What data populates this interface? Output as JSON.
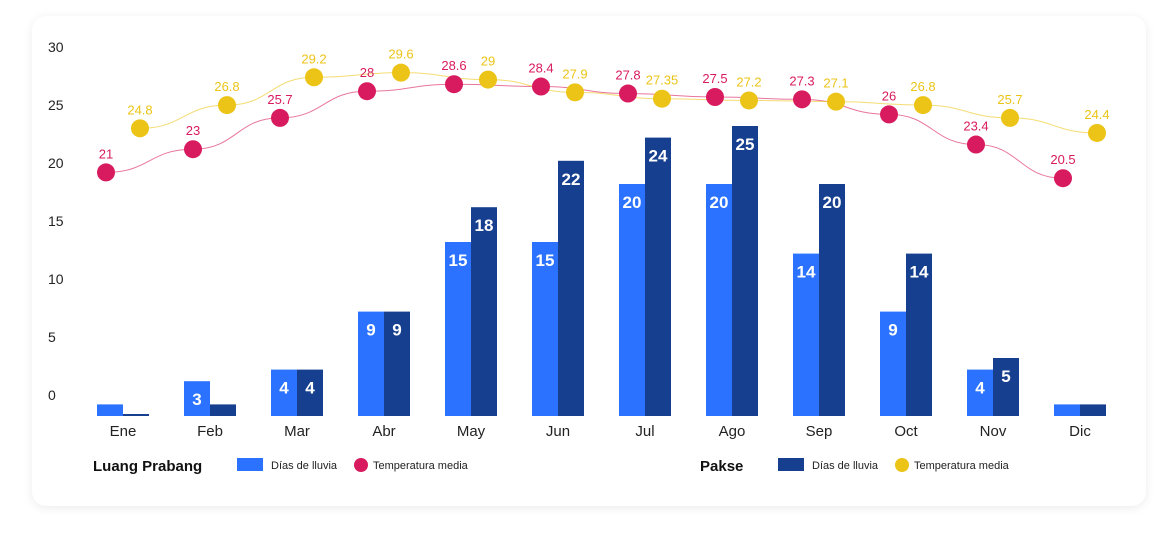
{
  "chart_data": {
    "type": "bar",
    "categories": [
      "Ene",
      "Feb",
      "Mar",
      "Abr",
      "May",
      "Jun",
      "Jul",
      "Ago",
      "Sep",
      "Oct",
      "Nov",
      "Dic"
    ],
    "ylim": [
      0,
      30
    ],
    "yticks": [
      0,
      5,
      10,
      15,
      20,
      25,
      30
    ],
    "grid": false,
    "legend_position": "bottom",
    "groups": [
      {
        "name": "Luang Prabang",
        "series": [
          {
            "name": "Días de lluvia",
            "type": "bar",
            "color": "#2a72ff",
            "values": [
              1,
              3,
              4,
              9,
              15,
              15,
              20,
              20,
              14,
              9,
              4,
              1
            ]
          },
          {
            "name": "Temperatura media",
            "type": "line",
            "color": "#d81b5e",
            "values": [
              21,
              23,
              25.7,
              28,
              28.6,
              28.4,
              27.8,
              27.5,
              27.3,
              26,
              23.4,
              20.5
            ],
            "labels": [
              "21",
              "23",
              "25.7",
              "28",
              "28.6",
              "28.4",
              "27.8",
              "27.5",
              "27.3",
              "26",
              "23.4",
              "20.5"
            ]
          }
        ]
      },
      {
        "name": "Pakse",
        "series": [
          {
            "name": "Días de lluvia",
            "type": "bar",
            "color": "#173f8f",
            "values": [
              0,
              1,
              4,
              9,
              18,
              22,
              24,
              25,
              20,
              14,
              5,
              1
            ]
          },
          {
            "name": "Temperatura media",
            "type": "line",
            "color": "#ecc417",
            "values": [
              24.8,
              26.8,
              29.2,
              29.6,
              29,
              27.9,
              27.35,
              27.2,
              27.1,
              26.8,
              25.7,
              24.4
            ],
            "labels": [
              "24.8",
              "26.8",
              "29.2",
              "29.6",
              "29",
              "27.9",
              "27.35",
              "27.2",
              "27.1",
              "26.8",
              "25.7",
              "24.4"
            ]
          }
        ]
      }
    ]
  }
}
